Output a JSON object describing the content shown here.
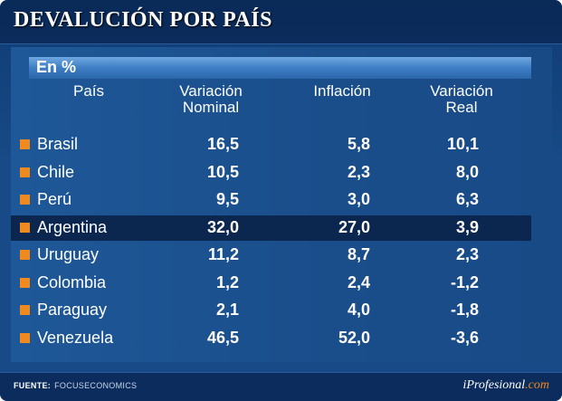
{
  "title": "DEVALUCIÓN POR PAÍS",
  "unit_label": "En %",
  "footer": {
    "source_label": "FUENTE:",
    "source_value": "FOCUSECONOMICS",
    "brand_prefix": "iProfesional",
    "brand_suffix": ".com"
  },
  "colors": {
    "accent_bullet": "#f08a1f",
    "background": "#174a86",
    "highlight_row": "#0b2750"
  },
  "chart_data": {
    "type": "table",
    "title": "DEVALUCIÓN POR PAÍS",
    "subtitle": "En %",
    "columns": {
      "country": [
        "País"
      ],
      "nominal": [
        "Variación",
        "Nominal"
      ],
      "inflation": [
        "Inflación"
      ],
      "real": [
        "Variación",
        "Real"
      ]
    },
    "rows": [
      {
        "country": "Brasil",
        "nominal": "16,5",
        "inflation": "5,8",
        "real": "10,1"
      },
      {
        "country": "Chile",
        "nominal": "10,5",
        "inflation": "2,3",
        "real": "8,0"
      },
      {
        "country": "Perú",
        "nominal": "9,5",
        "inflation": "3,0",
        "real": "6,3"
      },
      {
        "country": "Argentina",
        "nominal": "32,0",
        "inflation": "27,0",
        "real": "3,9",
        "highlighted": true
      },
      {
        "country": "Uruguay",
        "nominal": "11,2",
        "inflation": "8,7",
        "real": "2,3"
      },
      {
        "country": "Colombia",
        "nominal": "1,2",
        "inflation": "2,4",
        "real": "-1,2"
      },
      {
        "country": "Paraguay",
        "nominal": "2,1",
        "inflation": "4,0",
        "real": "-1,8"
      },
      {
        "country": "Venezuela",
        "nominal": "46,5",
        "inflation": "52,0",
        "real": "-3,6"
      }
    ],
    "source": "FOCUSECONOMICS"
  }
}
